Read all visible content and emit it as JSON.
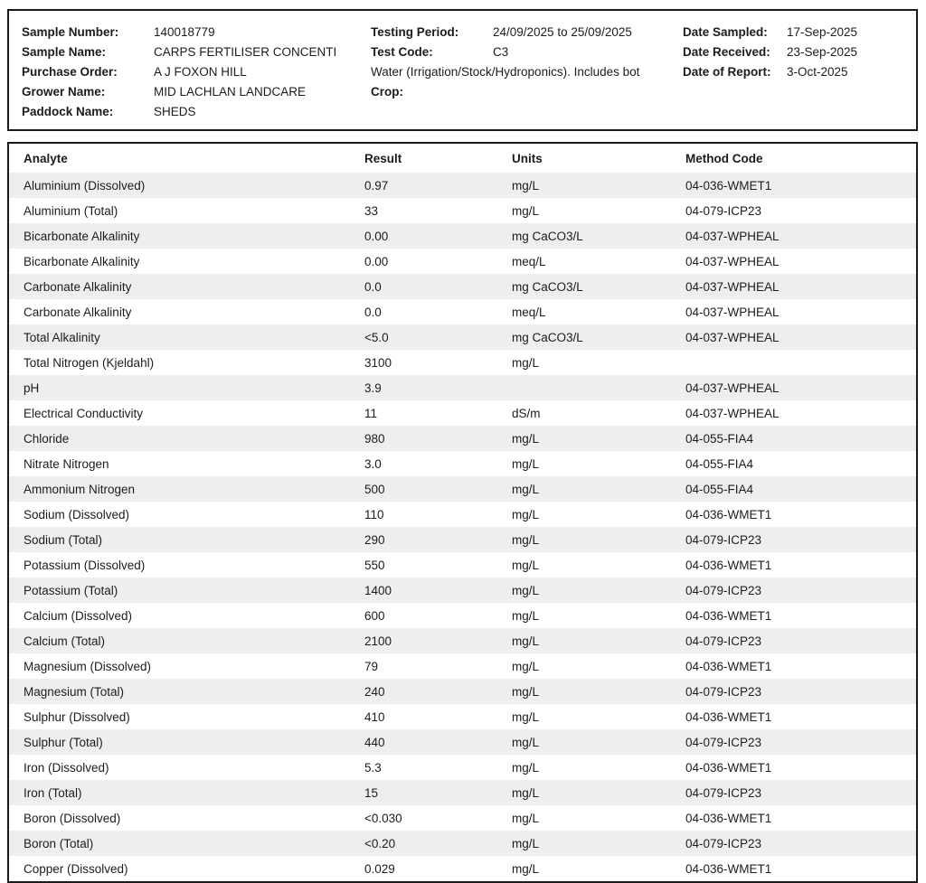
{
  "report_header": {
    "left": [
      {
        "label": "Sample Number:",
        "value": "140018779"
      },
      {
        "label": "Sample Name:",
        "value": "CARPS FERTILISER CONCENTI"
      },
      {
        "label": "Purchase Order:",
        "value": "A J FOXON HILL"
      },
      {
        "label": "Grower Name:",
        "value": "MID LACHLAN LANDCARE"
      },
      {
        "label": "Paddock Name:",
        "value": "SHEDS"
      }
    ],
    "middle": {
      "rows": [
        {
          "label": "Testing Period:",
          "value": "24/09/2025 to 25/09/2025"
        },
        {
          "label": "Test Code:",
          "value": "C3"
        }
      ],
      "description": "Water (Irrigation/Stock/Hydroponics). Includes bot",
      "crop_label": "Crop:",
      "crop_value": ""
    },
    "right": [
      {
        "label": "Date Sampled:",
        "value": "17-Sep-2025"
      },
      {
        "label": "Date Received:",
        "value": "23-Sep-2025"
      },
      {
        "label": "Date of Report:",
        "value": "3-Oct-2025"
      }
    ]
  },
  "results_table": {
    "columns": [
      "Analyte",
      "Result",
      "Units",
      "Method Code"
    ],
    "rows": [
      [
        "Aluminium (Dissolved)",
        "0.97",
        "mg/L",
        "04-036-WMET1"
      ],
      [
        "Aluminium (Total)",
        "33",
        "mg/L",
        "04-079-ICP23"
      ],
      [
        "Bicarbonate Alkalinity",
        "0.00",
        "mg CaCO3/L",
        "04-037-WPHEAL"
      ],
      [
        "Bicarbonate Alkalinity",
        "0.00",
        "meq/L",
        "04-037-WPHEAL"
      ],
      [
        "Carbonate Alkalinity",
        "0.0",
        "mg CaCO3/L",
        "04-037-WPHEAL"
      ],
      [
        "Carbonate Alkalinity",
        "0.0",
        "meq/L",
        "04-037-WPHEAL"
      ],
      [
        "Total Alkalinity",
        "<5.0",
        "mg CaCO3/L",
        "04-037-WPHEAL"
      ],
      [
        "Total Nitrogen (Kjeldahl)",
        "3100",
        "mg/L",
        ""
      ],
      [
        "pH",
        "3.9",
        "",
        "04-037-WPHEAL"
      ],
      [
        "Electrical Conductivity",
        "11",
        "dS/m",
        "04-037-WPHEAL"
      ],
      [
        "Chloride",
        "980",
        "mg/L",
        "04-055-FIA4"
      ],
      [
        "Nitrate Nitrogen",
        "3.0",
        "mg/L",
        "04-055-FIA4"
      ],
      [
        "Ammonium Nitrogen",
        "500",
        "mg/L",
        "04-055-FIA4"
      ],
      [
        "Sodium (Dissolved)",
        "110",
        "mg/L",
        "04-036-WMET1"
      ],
      [
        "Sodium (Total)",
        "290",
        "mg/L",
        "04-079-ICP23"
      ],
      [
        "Potassium (Dissolved)",
        "550",
        "mg/L",
        "04-036-WMET1"
      ],
      [
        "Potassium (Total)",
        "1400",
        "mg/L",
        "04-079-ICP23"
      ],
      [
        "Calcium (Dissolved)",
        "600",
        "mg/L",
        "04-036-WMET1"
      ],
      [
        "Calcium (Total)",
        "2100",
        "mg/L",
        "04-079-ICP23"
      ],
      [
        "Magnesium (Dissolved)",
        "79",
        "mg/L",
        "04-036-WMET1"
      ],
      [
        "Magnesium (Total)",
        "240",
        "mg/L",
        "04-079-ICP23"
      ],
      [
        "Sulphur (Dissolved)",
        "410",
        "mg/L",
        "04-036-WMET1"
      ],
      [
        "Sulphur (Total)",
        "440",
        "mg/L",
        "04-079-ICP23"
      ],
      [
        "Iron (Dissolved)",
        "5.3",
        "mg/L",
        "04-036-WMET1"
      ],
      [
        "Iron (Total)",
        "15",
        "mg/L",
        "04-079-ICP23"
      ],
      [
        "Boron (Dissolved)",
        "<0.030",
        "mg/L",
        "04-036-WMET1"
      ],
      [
        "Boron (Total)",
        "<0.20",
        "mg/L",
        "04-079-ICP23"
      ],
      [
        "Copper (Dissolved)",
        "0.029",
        "mg/L",
        "04-036-WMET1"
      ]
    ]
  }
}
